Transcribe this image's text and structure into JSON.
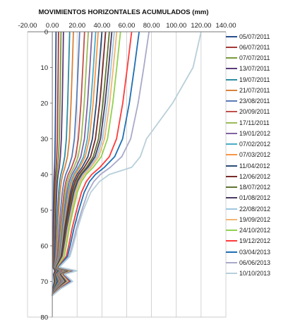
{
  "chart_data": {
    "type": "line",
    "title": "MOVIMIENTOS HORIZONTALES ACUMULADOS (mm)",
    "x_axis": {
      "position": "top",
      "range": [
        -20,
        140
      ],
      "ticks": [
        "-20.00",
        "0.00",
        "20.00",
        "40.00",
        "60.00",
        "80.00",
        "100.00",
        "120.00",
        "140.00"
      ]
    },
    "y_axis": {
      "range": [
        0,
        80
      ],
      "reversed": true,
      "ticks": [
        "0",
        "10",
        "20",
        "30",
        "40",
        "50",
        "60",
        "70",
        "80"
      ]
    },
    "grid": {
      "vertical": true,
      "horizontal": false
    },
    "legend_position": "right",
    "depth": [
      0,
      10,
      20,
      30,
      35,
      38,
      40,
      42,
      45,
      50,
      55,
      60,
      63,
      66,
      67,
      68,
      70,
      72,
      74
    ],
    "series": [
      {
        "name": "05/07/2011",
        "color": "#2b4f8e",
        "x": [
          3,
          2.8,
          2.6,
          2.3,
          2.1,
          1.8,
          1.5,
          1.3,
          1.1,
          0.9,
          0.7,
          0.6,
          0.5,
          0.5,
          2,
          1,
          1.5,
          0.5,
          0
        ]
      },
      {
        "name": "06/07/2011",
        "color": "#a33a36",
        "x": [
          5,
          4.7,
          4.4,
          4,
          3.6,
          3.1,
          2.6,
          2.2,
          1.9,
          1.6,
          1.3,
          1.1,
          1,
          0.8,
          3,
          1.5,
          2.5,
          1,
          0
        ]
      },
      {
        "name": "07/07/2011",
        "color": "#7a9a3c",
        "x": [
          7,
          6.6,
          6.2,
          5.6,
          5,
          4.3,
          3.6,
          3.1,
          2.7,
          2.3,
          1.9,
          1.6,
          1.4,
          1,
          4,
          2,
          3,
          1.2,
          0
        ]
      },
      {
        "name": "13/07/2011",
        "color": "#5b3d7a",
        "x": [
          9,
          8.5,
          8,
          7.3,
          6.5,
          5.6,
          4.7,
          4,
          3.5,
          3,
          2.5,
          2.1,
          1.8,
          1.2,
          5,
          2.5,
          4,
          1.5,
          0
        ]
      },
      {
        "name": "19/07/2011",
        "color": "#2f8da3",
        "x": [
          14,
          13.2,
          12.4,
          11.3,
          10,
          8.4,
          6.9,
          5.9,
          5.1,
          4.3,
          3.6,
          3,
          2.6,
          1.5,
          6,
          3,
          5,
          2,
          0
        ]
      },
      {
        "name": "21/07/2011",
        "color": "#d9823b",
        "x": [
          17,
          16.1,
          15.1,
          13.8,
          12.2,
          10.2,
          8.4,
          7.2,
          6.2,
          5.2,
          4.3,
          3.6,
          3.1,
          1.8,
          7,
          3.5,
          6,
          2.3,
          0
        ]
      },
      {
        "name": "23/08/2011",
        "color": "#5a7ab5",
        "x": [
          22,
          20.8,
          19.5,
          17.8,
          15.8,
          13.2,
          10.8,
          9.3,
          8,
          6.7,
          5.5,
          4.6,
          4,
          2,
          8,
          4,
          7,
          2.6,
          0
        ]
      },
      {
        "name": "20/09/2011",
        "color": "#c0504d",
        "x": [
          26,
          24.6,
          23.1,
          21,
          18.7,
          15.6,
          12.8,
          11,
          9.5,
          8,
          6.6,
          5.5,
          4.8,
          2.2,
          9,
          4.5,
          8,
          3,
          0
        ]
      },
      {
        "name": "17/11/2011",
        "color": "#9bbb59",
        "x": [
          29,
          27.4,
          25.7,
          23.4,
          20.8,
          17.4,
          14.3,
          12.3,
          10.6,
          8.9,
          7.3,
          6.1,
          5.3,
          2.4,
          10,
          5,
          8.5,
          3.3,
          0
        ]
      },
      {
        "name": "19/01/2012",
        "color": "#8064a2",
        "x": [
          32,
          30.3,
          28.4,
          25.9,
          23,
          19.2,
          15.8,
          13.6,
          11.7,
          9.8,
          8.1,
          6.7,
          5.8,
          2.6,
          11,
          5.5,
          9,
          3.6,
          0
        ]
      },
      {
        "name": "07/02/2012",
        "color": "#4bacc6",
        "x": [
          35,
          33.1,
          31.1,
          28.3,
          25.2,
          21,
          17.3,
          14.9,
          12.8,
          10.7,
          8.8,
          7.3,
          6.3,
          2.8,
          12,
          6,
          9.5,
          3.9,
          0
        ]
      },
      {
        "name": "07/03/2012",
        "color": "#f79646",
        "x": [
          37,
          35,
          32.9,
          29.9,
          26.6,
          22.2,
          18.3,
          15.8,
          13.6,
          11.4,
          9.4,
          7.8,
          6.7,
          3,
          12.5,
          6.3,
          10,
          4.1,
          0
        ]
      },
      {
        "name": "11/04/2012",
        "color": "#2c4d75",
        "x": [
          40,
          37.8,
          35.5,
          32.3,
          28.7,
          24,
          19.8,
          17,
          14.6,
          12.2,
          10,
          8.3,
          7.1,
          3.2,
          13,
          6.6,
          10.5,
          4.3,
          0
        ]
      },
      {
        "name": "12/06/2012",
        "color": "#772c2a",
        "x": [
          43,
          40.7,
          38.2,
          34.8,
          30.9,
          25.8,
          21.3,
          18.3,
          15.7,
          13.1,
          10.8,
          8.9,
          7.6,
          3.4,
          13.5,
          6.9,
          11,
          4.5,
          0
        ]
      },
      {
        "name": "18/07/2012",
        "color": "#5f7530",
        "x": [
          46,
          43.5,
          40.8,
          37.2,
          33,
          27.6,
          22.8,
          19.6,
          16.8,
          14,
          11.5,
          9.5,
          8.1,
          3.6,
          14,
          7.2,
          11.5,
          4.7,
          0
        ]
      },
      {
        "name": "01/08/2012",
        "color": "#4d3b62",
        "x": [
          48,
          45.4,
          42.6,
          38.8,
          34.5,
          28.8,
          23.8,
          20.5,
          17.6,
          14.7,
          12,
          9.9,
          8.4,
          3.8,
          14.5,
          7.5,
          12,
          4.9,
          0
        ]
      },
      {
        "name": "22/08/2012",
        "color": "#9ec7e0",
        "x": [
          50,
          47.3,
          44.4,
          40.5,
          35.9,
          30,
          24.8,
          21.4,
          18.4,
          15.3,
          12.5,
          10.3,
          8.8,
          4,
          15,
          7.8,
          12.5,
          5.1,
          0
        ]
      },
      {
        "name": "19/09/2012",
        "color": "#f2b572",
        "x": [
          52,
          49.2,
          46.2,
          42.1,
          37.4,
          31.2,
          25.8,
          22.2,
          19.1,
          15.9,
          13,
          10.7,
          9.1,
          4.1,
          15.5,
          8,
          13,
          5.3,
          0
        ]
      },
      {
        "name": "24/10/2012",
        "color": "#92d050",
        "x": [
          55,
          52,
          48.8,
          44.5,
          39.5,
          33,
          27.3,
          23.5,
          20.2,
          16.8,
          13.7,
          11.3,
          9.6,
          4.3,
          16,
          8.3,
          13.5,
          5.5,
          0
        ]
      },
      {
        "name": "19/12/2012",
        "color": "#ff3b3b",
        "x": [
          64,
          60.5,
          56.8,
          51.8,
          46,
          38.4,
          31.8,
          27.4,
          23.5,
          19.6,
          16,
          13.2,
          11.2,
          4.6,
          17,
          8.7,
          14,
          5.8,
          0
        ]
      },
      {
        "name": "03/04/2013",
        "color": "#1f6fb2",
        "x": [
          70,
          66.2,
          62.1,
          56.7,
          50.3,
          42,
          34.8,
          30,
          25.7,
          21.4,
          17.5,
          14.4,
          12.2,
          4.9,
          18,
          9.2,
          15,
          6.2,
          0
        ]
      },
      {
        "name": "06/06/2013",
        "color": "#a9a9c9",
        "x": [
          78,
          73.8,
          69.2,
          63.2,
          56,
          46.8,
          38.8,
          33.4,
          28.6,
          23.8,
          19.5,
          16,
          13.6,
          5.5,
          19,
          9.7,
          16,
          6.6,
          0
        ]
      },
      {
        "name": "10/10/2013",
        "color": "#b8cfd9",
        "x": [
          120,
          113.5,
          97,
          76,
          71,
          64,
          46,
          38,
          31,
          25,
          20.5,
          16.8,
          14.2,
          5.8,
          20,
          10,
          16.5,
          7,
          0
        ]
      }
    ]
  }
}
